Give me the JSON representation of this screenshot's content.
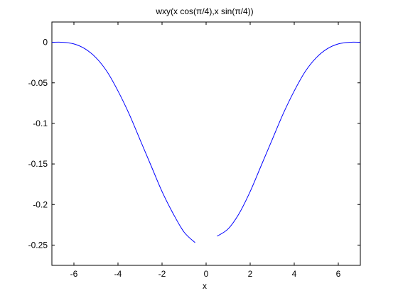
{
  "chart_data": {
    "type": "line",
    "title": "wxy(x cos(π/4),x sin(π/4))",
    "xlabel": "x",
    "ylabel": "",
    "xlim": [
      -7,
      7
    ],
    "ylim": [
      -0.275,
      0.025
    ],
    "xticks": [
      -6,
      -4,
      -2,
      0,
      2,
      4,
      6
    ],
    "yticks": [
      0,
      -0.05,
      -0.1,
      -0.15,
      -0.2,
      -0.25
    ],
    "xtick_labels": [
      "-6",
      "-4",
      "-2",
      "0",
      "2",
      "4",
      "6"
    ],
    "ytick_labels": [
      "0",
      "-0.05",
      "-0.1",
      "-0.15",
      "-0.2",
      "-0.25"
    ],
    "grid": false,
    "line_color": "#0000ff",
    "series": [
      {
        "segments": [
          {
            "x": [
              -7,
              -6.5,
              -6,
              -5.5,
              -5,
              -4.5,
              -4,
              -3.5,
              -3,
              -2.5,
              -2,
              -1.5,
              -1,
              -0.5
            ],
            "y": [
              0,
              0,
              -0.002,
              -0.008,
              -0.019,
              -0.036,
              -0.06,
              -0.088,
              -0.12,
              -0.152,
              -0.184,
              -0.211,
              -0.234,
              -0.247
            ]
          },
          {
            "x": [
              0.5,
              1,
              1.5,
              2,
              2.5,
              3,
              3.5,
              4,
              4.5,
              5,
              5.5,
              6,
              6.5,
              7
            ],
            "y": [
              -0.239,
              -0.23,
              -0.211,
              -0.184,
              -0.152,
              -0.12,
              -0.088,
              -0.06,
              -0.036,
              -0.019,
              -0.008,
              -0.002,
              0,
              0
            ]
          }
        ]
      }
    ]
  }
}
